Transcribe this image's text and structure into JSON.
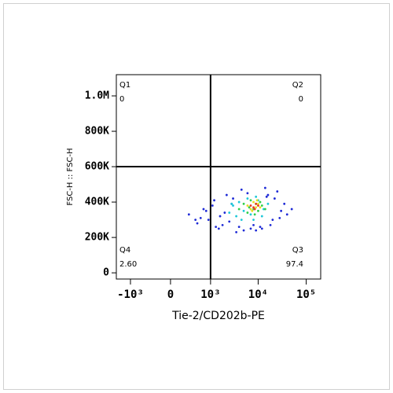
{
  "chart_data": {
    "type": "scatter",
    "x_label": "Tie-2/CD202b-PE",
    "y_label": "FSC-H :: FSC-H",
    "x_scale": "biexponential",
    "xlim": [
      -2000,
      200000
    ],
    "ylim": [
      -35000,
      1120000
    ],
    "xticks": [
      {
        "value": -1000,
        "label": "-10³"
      },
      0,
      {
        "value": 1000,
        "label": "10³"
      },
      {
        "value": 10000,
        "label": "10⁴"
      },
      {
        "value": 100000,
        "label": "10⁵"
      }
    ],
    "yticks": [
      0,
      {
        "value": 200000,
        "label": "200K"
      },
      {
        "value": 400000,
        "label": "400K"
      },
      {
        "value": 600000,
        "label": "600K"
      },
      {
        "value": 800000,
        "label": "800K"
      },
      {
        "value": 1000000,
        "label": "1.0M"
      }
    ],
    "gate": {
      "x": 1000,
      "y": 600000
    },
    "quadrants": {
      "names": [
        "Q1",
        "Q2",
        "Q3",
        "Q4"
      ],
      "values": [
        0,
        0,
        97.4,
        2.6
      ],
      "value_labels": [
        "0",
        "0",
        "97.4",
        "2.60"
      ]
    },
    "series": [
      {
        "color": "#1f2bd6",
        "x": [
          300,
          500,
          700,
          900,
          1200,
          1500,
          2000,
          2500,
          3000,
          4000,
          5000,
          6000,
          8000,
          12000,
          15000,
          20000,
          25000,
          30000,
          40000,
          50000,
          600,
          1100,
          1800,
          2200,
          3500,
          4500,
          9000,
          14000,
          18000,
          22000,
          800,
          1600,
          2800,
          7000,
          11000,
          16000,
          28000,
          35000,
          450,
          1300
        ],
        "values": [
          330000,
          280000,
          360000,
          300000,
          410000,
          250000,
          340000,
          290000,
          420000,
          260000,
          240000,
          450000,
          270000,
          250000,
          430000,
          300000,
          460000,
          350000,
          330000,
          360000,
          310000,
          380000,
          270000,
          440000,
          230000,
          470000,
          240000,
          480000,
          270000,
          420000,
          350000,
          320000,
          390000,
          250000,
          260000,
          440000,
          310000,
          390000,
          300000,
          260000
        ]
      },
      {
        "color": "#1fc8d8",
        "x": [
          2500,
          3000,
          3500,
          4000,
          5000,
          6000,
          8000,
          10000,
          13000,
          16000,
          4500,
          7000,
          9000,
          12000,
          2800
        ],
        "values": [
          340000,
          380000,
          320000,
          400000,
          350000,
          420000,
          300000,
          410000,
          360000,
          390000,
          300000,
          330000,
          430000,
          320000,
          390000
        ]
      },
      {
        "color": "#2fcf4a",
        "x": [
          4000,
          5000,
          6000,
          7000,
          8000,
          9000,
          10000,
          11000,
          12000,
          6500,
          8500,
          14000
        ],
        "values": [
          360000,
          390000,
          340000,
          410000,
          360000,
          390000,
          350000,
          400000,
          380000,
          370000,
          330000,
          360000
        ]
      },
      {
        "color": "#e8e020",
        "x": [
          6000,
          7000,
          8000,
          9000,
          10000,
          11000,
          7500,
          9500
        ],
        "values": [
          380000,
          360000,
          400000,
          370000,
          390000,
          370000,
          350000,
          410000
        ]
      },
      {
        "color": "#e83a1c",
        "x": [
          7000,
          8000,
          9000,
          10000,
          8500
        ],
        "values": [
          380000,
          370000,
          390000,
          380000,
          360000
        ]
      }
    ]
  }
}
